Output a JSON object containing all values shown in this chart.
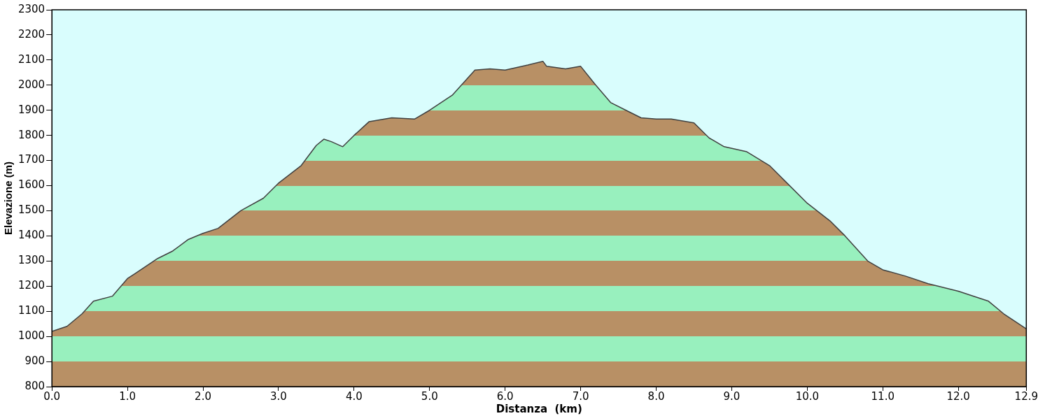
{
  "chart_data": {
    "type": "area",
    "xlabel": "Distanza  (km)",
    "ylabel": "Elevazione (m)",
    "x": [
      0,
      0.2,
      0.4,
      0.55,
      0.8,
      1.0,
      1.1,
      1.4,
      1.6,
      1.8,
      2.0,
      2.2,
      2.5,
      2.8,
      3.0,
      3.3,
      3.5,
      3.6,
      3.7,
      3.85,
      4.0,
      4.2,
      4.5,
      4.8,
      5.0,
      5.3,
      5.6,
      5.8,
      6.0,
      6.3,
      6.5,
      6.55,
      6.8,
      7.0,
      7.2,
      7.4,
      7.6,
      7.8,
      8.0,
      8.2,
      8.5,
      8.7,
      8.9,
      9.2,
      9.5,
      9.7,
      10.0,
      10.3,
      10.5,
      10.8,
      11.0,
      11.3,
      11.6,
      12.0,
      12.4,
      12.6,
      12.9
    ],
    "series": [
      {
        "color": "#b89065",
        "values": [
          1020,
          1040,
          1090,
          1140,
          1160,
          1230,
          1250,
          1310,
          1340,
          1385,
          1410,
          1430,
          1500,
          1550,
          1610,
          1680,
          1760,
          1785,
          1775,
          1755,
          1800,
          1855,
          1870,
          1865,
          1900,
          1960,
          2060,
          2065,
          2060,
          2080,
          2095,
          2075,
          2065,
          2075,
          2000,
          1930,
          1900,
          1870,
          1865,
          1865,
          1850,
          1790,
          1755,
          1735,
          1680,
          1620,
          1530,
          1460,
          1400,
          1300,
          1265,
          1240,
          1210,
          1180,
          1140,
          1090,
          1030
        ]
      }
    ],
    "xlim": [
      0,
      12.9
    ],
    "ylim": [
      800,
      2300
    ],
    "xticks": [
      {
        "value": 0,
        "label": "0.0"
      },
      {
        "value": 1,
        "label": "1.0"
      },
      {
        "value": 2,
        "label": "2.0"
      },
      {
        "value": 3,
        "label": "3.0"
      },
      {
        "value": 4,
        "label": "4.0"
      },
      {
        "value": 5,
        "label": "5.0"
      },
      {
        "value": 6,
        "label": "6.0"
      },
      {
        "value": 7,
        "label": "7.0"
      },
      {
        "value": 8,
        "label": "8.0"
      },
      {
        "value": 9,
        "label": "9.0"
      },
      {
        "value": 10,
        "label": "10.0"
      },
      {
        "value": 11,
        "label": "11.0"
      },
      {
        "value": 12,
        "label": "12.0"
      },
      {
        "value": 12.9,
        "label": "12.9"
      }
    ],
    "yticks": [
      800,
      900,
      1000,
      1100,
      1200,
      1300,
      1400,
      1500,
      1600,
      1700,
      1800,
      1900,
      2000,
      2100,
      2200,
      2300
    ],
    "grid": false,
    "legend": false,
    "marker": "none",
    "line_style": "solid"
  }
}
